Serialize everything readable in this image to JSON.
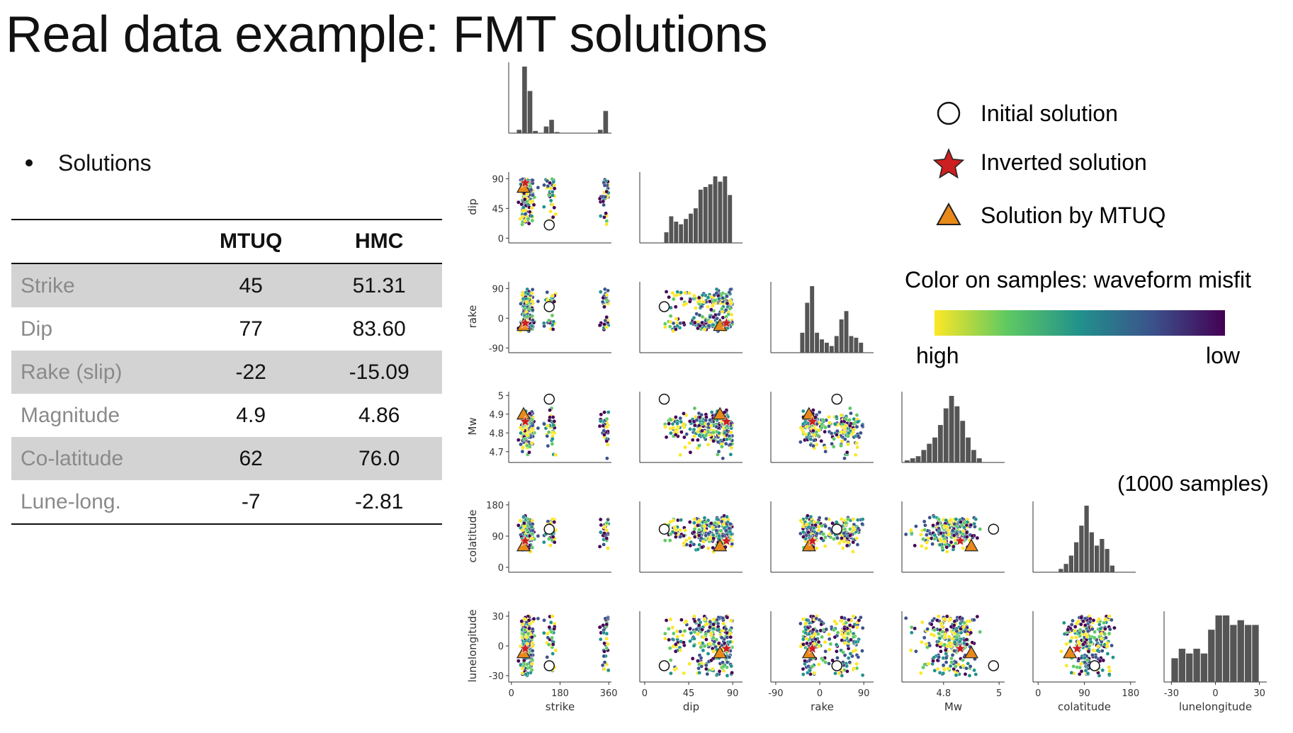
{
  "slide": {
    "title": "Real data example: FMT solutions",
    "bullet": "Solutions"
  },
  "table": {
    "columns": [
      "",
      "MTUQ",
      "HMC"
    ],
    "rows": [
      {
        "label": "Strike",
        "mtuq": "45",
        "hmc": "51.31"
      },
      {
        "label": "Dip",
        "mtuq": "77",
        "hmc": "83.60"
      },
      {
        "label": "Rake (slip)",
        "mtuq": "-22",
        "hmc": "-15.09"
      },
      {
        "label": "Magnitude",
        "mtuq": "4.9",
        "hmc": "4.86"
      },
      {
        "label": "Co-latitude",
        "mtuq": "62",
        "hmc": "76.0"
      },
      {
        "label": "Lune-long.",
        "mtuq": "-7",
        "hmc": "-2.81"
      }
    ]
  },
  "legend": {
    "initial": "Initial solution",
    "inverted": "Inverted solution",
    "mtuq": "Solution by MTUQ",
    "colorbar_title": "Color on samples: waveform misfit",
    "colorbar_high": "high",
    "colorbar_low": "low",
    "samples_note": "(1000 samples)",
    "colors": {
      "star": "#cc1f1f",
      "triangle": "#e8891a",
      "viridis": [
        "#fde725",
        "#5ec962",
        "#21918c",
        "#3b528b",
        "#440154"
      ]
    }
  },
  "chart_data": {
    "type": "scatter",
    "subtype": "pairplot",
    "n_samples": 1000,
    "variables": [
      {
        "name": "strike",
        "label": "strike",
        "range": [
          -10,
          370
        ],
        "ticks": [
          0,
          180,
          360
        ]
      },
      {
        "name": "dip",
        "label": "dip",
        "range": [
          -5,
          100
        ],
        "ticks": [
          0,
          45,
          90
        ]
      },
      {
        "name": "rake",
        "label": "rake",
        "range": [
          -100,
          110
        ],
        "ticks": [
          -90,
          0,
          90
        ]
      },
      {
        "name": "Mw",
        "label": "Mw",
        "range": [
          4.65,
          5.02
        ],
        "ticks": [
          4.7,
          4.8,
          4.9,
          5.0
        ],
        "diag_ticks": [
          4.8,
          5.0
        ]
      },
      {
        "name": "colatitude",
        "label": "colatitude",
        "range": [
          -10,
          190
        ],
        "ticks": [
          0,
          90,
          180
        ]
      },
      {
        "name": "lunelongitude",
        "label": "lunelongitude",
        "range": [
          -35,
          35
        ],
        "ticks": [
          -30,
          0,
          30
        ]
      }
    ],
    "initial_solution": {
      "strike": 140,
      "dip": 20,
      "rake": 35,
      "Mw": 4.98,
      "colatitude": 110,
      "lunelongitude": -20
    },
    "inverted_solution": {
      "strike": 51.31,
      "dip": 83.6,
      "rake": -15.09,
      "Mw": 4.86,
      "colatitude": 76.0,
      "lunelongitude": -2.81
    },
    "mtuq_solution": {
      "strike": 45,
      "dip": 77,
      "rake": -22,
      "Mw": 4.9,
      "colatitude": 62,
      "lunelongitude": -7
    },
    "histograms": {
      "strike": {
        "bins": [
          0,
          20,
          40,
          60,
          80,
          100,
          120,
          140,
          160,
          180,
          200,
          220,
          240,
          260,
          280,
          300,
          320,
          340,
          360
        ],
        "counts": [
          0,
          3,
          60,
          38,
          2,
          0,
          6,
          12,
          1,
          0,
          0,
          0,
          0,
          0,
          0,
          0,
          3,
          20
        ]
      },
      "dip": {
        "bins": [
          20,
          25,
          30,
          35,
          40,
          45,
          50,
          55,
          60,
          65,
          70,
          75,
          80,
          85
        ],
        "counts": [
          4,
          10,
          8,
          7,
          9,
          11,
          13,
          20,
          21,
          22,
          25,
          23,
          25,
          18
        ]
      },
      "rake": {
        "bins": [
          -40,
          -30,
          -20,
          -10,
          0,
          10,
          20,
          30,
          40,
          50,
          60,
          70,
          80
        ],
        "counts": [
          12,
          30,
          40,
          12,
          8,
          6,
          4,
          10,
          20,
          25,
          10,
          9,
          6
        ]
      },
      "Mw": {
        "bins": [
          4.66,
          4.68,
          4.7,
          4.72,
          4.74,
          4.76,
          4.78,
          4.8,
          4.82,
          4.84,
          4.86,
          4.88,
          4.9,
          4.92
        ],
        "counts": [
          1,
          2,
          3,
          6,
          9,
          12,
          18,
          26,
          32,
          27,
          20,
          12,
          6,
          2
        ]
      },
      "colatitude": {
        "bins": [
          40,
          50,
          60,
          70,
          80,
          90,
          100,
          110,
          120,
          130,
          140
        ],
        "counts": [
          2,
          5,
          10,
          18,
          28,
          40,
          24,
          16,
          20,
          14,
          4
        ]
      },
      "lunelongitude": {
        "bins": [
          -30,
          -25,
          -20,
          -15,
          -10,
          -5,
          0,
          5,
          10,
          15,
          20,
          25
        ],
        "counts": [
          10,
          14,
          12,
          14,
          12,
          22,
          28,
          28,
          24,
          26,
          24,
          24
        ]
      }
    }
  }
}
